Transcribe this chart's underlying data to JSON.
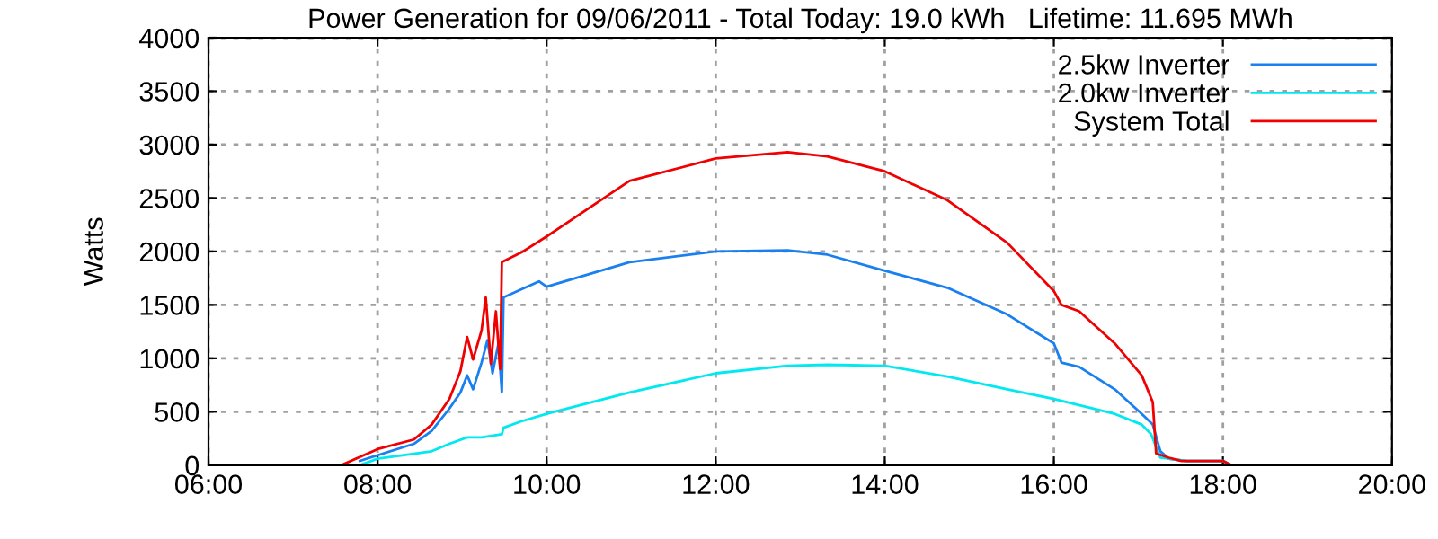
{
  "chart_data": {
    "type": "line",
    "title": "Power Generation for 09/06/2011 - Total Today: 19.0 kWh   Lifetime: 11.695 MWh",
    "ylabel": "Watts",
    "xlim": [
      6,
      20
    ],
    "xticks": [
      {
        "value": 6,
        "label": "06:00"
      },
      {
        "value": 8,
        "label": "08:00"
      },
      {
        "value": 10,
        "label": "10:00"
      },
      {
        "value": 12,
        "label": "12:00"
      },
      {
        "value": 14,
        "label": "14:00"
      },
      {
        "value": 16,
        "label": "16:00"
      },
      {
        "value": 18,
        "label": "18:00"
      },
      {
        "value": 20,
        "label": "20:00"
      }
    ],
    "ylim": [
      0,
      4000
    ],
    "yticks": [
      0,
      500,
      1000,
      1500,
      2000,
      2500,
      3000,
      3500,
      4000
    ],
    "grid": true,
    "legend": "top right",
    "line_style": "solid",
    "series": [
      {
        "name": "2.5kw Inverter",
        "color": "#1a80f0",
        "x": [
          7.79,
          8.43,
          8.64,
          8.85,
          8.98,
          9.06,
          9.13,
          9.23,
          9.3,
          9.36,
          9.43,
          9.47,
          9.49,
          9.91,
          10.0,
          10.98,
          12.0,
          12.85,
          13.32,
          14.0,
          14.74,
          15.45,
          16.0,
          16.09,
          16.3,
          16.72,
          17.04,
          17.17,
          17.26,
          17.36,
          17.57,
          18.0,
          18.1
        ],
        "values": [
          40,
          200,
          320,
          530,
          680,
          840,
          710,
          960,
          1170,
          860,
          1140,
          680,
          1570,
          1720,
          1670,
          1900,
          2000,
          2010,
          1970,
          1820,
          1660,
          1410,
          1140,
          960,
          920,
          710,
          480,
          380,
          130,
          60,
          40,
          40,
          0
        ]
      },
      {
        "name": "2.0kw Inverter",
        "color": "#00e8f0",
        "x": [
          7.79,
          8.0,
          8.64,
          8.85,
          9.06,
          9.23,
          9.47,
          9.49,
          9.7,
          10.0,
          10.98,
          12.0,
          12.85,
          13.32,
          14.0,
          14.74,
          15.45,
          16.0,
          16.72,
          17.04,
          17.15,
          17.26,
          17.57,
          18.0,
          18.1
        ],
        "values": [
          0,
          60,
          130,
          200,
          260,
          260,
          290,
          350,
          410,
          480,
          680,
          860,
          930,
          940,
          930,
          830,
          710,
          620,
          480,
          380,
          290,
          70,
          40,
          40,
          0
        ]
      },
      {
        "name": "System Total",
        "color": "#f00000",
        "x": [
          7.57,
          8.0,
          8.43,
          8.64,
          8.85,
          8.98,
          9.06,
          9.13,
          9.23,
          9.28,
          9.34,
          9.4,
          9.45,
          9.47,
          9.7,
          10.0,
          10.98,
          12.0,
          12.85,
          13.32,
          14.0,
          14.74,
          15.45,
          16.0,
          16.09,
          16.3,
          16.72,
          17.04,
          17.17,
          17.21,
          17.36,
          17.51,
          18.0,
          18.1,
          18.8
        ],
        "values": [
          0,
          150,
          240,
          380,
          620,
          880,
          1200,
          990,
          1260,
          1570,
          950,
          1440,
          900,
          1900,
          1990,
          2140,
          2660,
          2870,
          2930,
          2890,
          2750,
          2480,
          2080,
          1630,
          1500,
          1440,
          1140,
          840,
          590,
          110,
          70,
          40,
          40,
          0,
          0
        ]
      }
    ]
  }
}
